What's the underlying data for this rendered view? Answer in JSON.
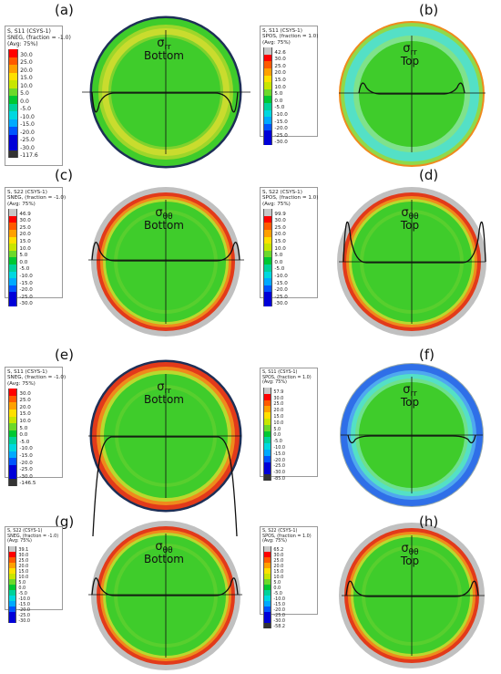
{
  "panels": [
    {
      "id": "a",
      "label": "(a)",
      "stress_symbol": "σ",
      "stress_subscript": "rr",
      "surface": "Bottom",
      "legend": {
        "lines": [
          "S, S11 (CSYS-1)",
          "SNEG, (fraction = -1.0)",
          "(Avg: 75%)"
        ],
        "values": [
          "30.0",
          "25.0",
          "20.0",
          "15.0",
          "10.0",
          "5.0",
          "0.0",
          "-5.0",
          "-10.0",
          "-15.0",
          "-20.0",
          "-25.0",
          "-30.0",
          "-117.6"
        ]
      }
    },
    {
      "id": "b",
      "label": "(b)",
      "stress_symbol": "σ",
      "stress_subscript": "rr",
      "surface": "Top",
      "legend": {
        "lines": [
          "S, S11 (CSYS-1)",
          "SPOS, (fraction = 1.0)",
          "(Avg: 75%)"
        ],
        "values": [
          "42.6",
          "30.0",
          "25.0",
          "20.0",
          "15.0",
          "10.0",
          "5.0",
          "0.0",
          "-5.0",
          "-10.0",
          "-15.0",
          "-20.0",
          "-25.0",
          "-30.0"
        ]
      }
    },
    {
      "id": "c",
      "label": "(c)",
      "stress_symbol": "σ",
      "stress_subscript": "θθ",
      "surface": "Bottom",
      "legend": {
        "lines": [
          "S, S22 (CSYS-1)",
          "SNEG, (fraction = -1.0)",
          "(Avg: 75%)"
        ],
        "values": [
          "46.9",
          "30.0",
          "25.0",
          "20.0",
          "15.0",
          "10.0",
          "5.0",
          "0.0",
          "-5.0",
          "-10.0",
          "-15.0",
          "-20.0",
          "-25.0",
          "-30.0"
        ]
      }
    },
    {
      "id": "d",
      "label": "(d)",
      "stress_symbol": "σ",
      "stress_subscript": "θθ",
      "surface": "Top",
      "legend": {
        "lines": [
          "S, S22 (CSYS-1)",
          "SPOS, (fraction = 1.0)",
          "(Avg: 75%)"
        ],
        "values": [
          "99.9",
          "30.0",
          "25.0",
          "20.0",
          "15.0",
          "10.0",
          "5.0",
          "0.0",
          "-5.0",
          "-10.0",
          "-15.0",
          "-20.0",
          "-25.0",
          "-30.0"
        ]
      }
    },
    {
      "id": "e",
      "label": "(e)",
      "stress_symbol": "σ",
      "stress_subscript": "rr",
      "surface": "Bottom",
      "legend": {
        "lines": [
          "S, S11 (CSYS-1)",
          "SNEG, (fraction = -1.0)",
          "(Avg: 75%)"
        ],
        "values": [
          "30.0",
          "25.0",
          "20.0",
          "15.0",
          "10.0",
          "5.0",
          "0.0",
          "-5.0",
          "-10.0",
          "-15.0",
          "-20.0",
          "-25.0",
          "-30.0",
          "-146.5"
        ]
      }
    },
    {
      "id": "f",
      "label": "(f)",
      "stress_symbol": "σ",
      "stress_subscript": "rr",
      "surface": "Top",
      "legend": {
        "lines": [
          "S, S11 (CSYS-1)",
          "SPOS, (fraction = 1.0)",
          "(Avg: 75%)"
        ],
        "values": [
          "57.9",
          "30.0",
          "25.0",
          "20.0",
          "15.0",
          "10.0",
          "5.0",
          "0.0",
          "-5.0",
          "-10.0",
          "-15.0",
          "-20.0",
          "-25.0",
          "-30.0",
          "-85.0"
        ]
      }
    },
    {
      "id": "g",
      "label": "(g)",
      "stress_symbol": "σ",
      "stress_subscript": "θθ",
      "surface": "Bottom",
      "legend": {
        "lines": [
          "S, S22 (CSYS-1)",
          "SNEG, (fraction = -1.0)",
          "(Avg: 75%)"
        ],
        "values": [
          "39.1",
          "30.0",
          "25.0",
          "20.0",
          "15.0",
          "10.0",
          "5.0",
          "0.0",
          "-5.0",
          "-10.0",
          "-15.0",
          "-20.0",
          "-25.0",
          "-30.0"
        ]
      }
    },
    {
      "id": "h",
      "label": "(h)",
      "stress_symbol": "σ",
      "stress_subscript": "θθ",
      "surface": "Top",
      "legend": {
        "lines": [
          "S, S22 (CSYS-1)",
          "SPOS, (fraction = 1.0)",
          "(Avg: 75%)"
        ],
        "values": [
          "65.2",
          "30.0",
          "25.0",
          "20.0",
          "15.0",
          "10.0",
          "5.0",
          "0.0",
          "-5.0",
          "-10.0",
          "-15.0",
          "-20.0",
          "-25.0",
          "-30.0",
          "-58.2"
        ]
      }
    }
  ],
  "colors": {
    "contour_green": "#3fcc2b",
    "band_yellow": "#c9dc2e",
    "band_red": "#e23a1a",
    "band_orange": "#ef8a1c",
    "band_cyan": "#54e0c6",
    "band_blue": "#2f6fe8",
    "rim_navy": "#1d2f57",
    "rim_grey": "#c0c0c0",
    "grey_high": "#c8c8c8",
    "dark_low": "#333333",
    "line_black": "#111111"
  },
  "contour_palette": [
    "#c8c8c8",
    "#ff0000",
    "#ff5a00",
    "#ffa000",
    "#ffe000",
    "#c8e600",
    "#6cd92a",
    "#00c832",
    "#00d29a",
    "#00d8e0",
    "#00aaff",
    "#0055ff",
    "#0000d8",
    "#333333"
  ]
}
